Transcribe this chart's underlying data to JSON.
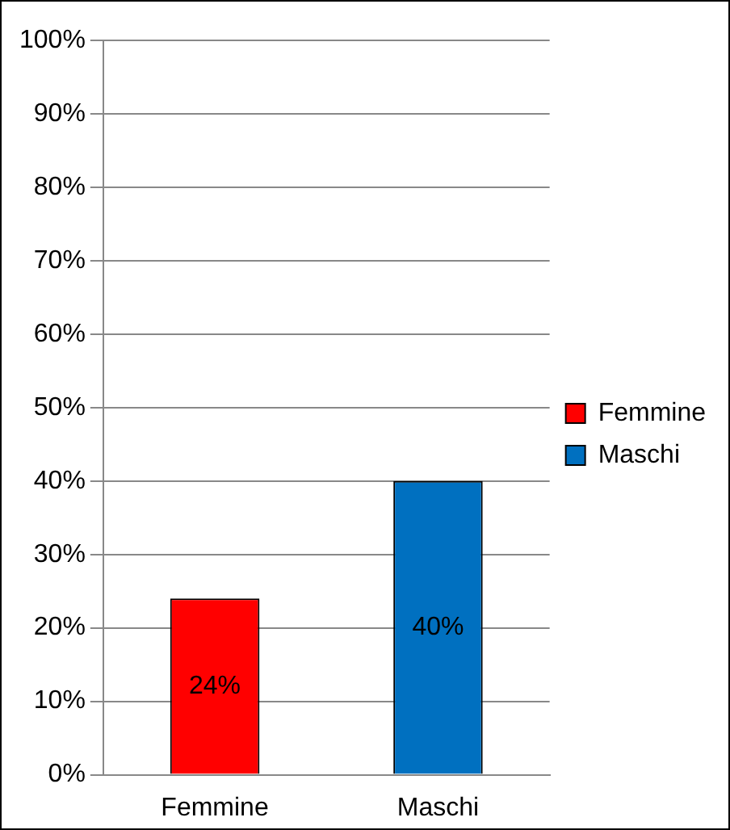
{
  "chart_data": {
    "type": "bar",
    "categories": [
      "Femmine",
      "Maschi"
    ],
    "series": [
      {
        "name": "Femmine",
        "color": "#ff0000",
        "values": [
          24,
          null
        ],
        "value_labels": [
          "24%",
          null
        ]
      },
      {
        "name": "Maschi",
        "color": "#0070c0",
        "values": [
          null,
          40
        ],
        "value_labels": [
          null,
          "40%"
        ]
      }
    ],
    "ylim": [
      0,
      100
    ],
    "yticks": [
      {
        "value": 0,
        "label": "0%"
      },
      {
        "value": 10,
        "label": "10%"
      },
      {
        "value": 20,
        "label": "20%"
      },
      {
        "value": 30,
        "label": "30%"
      },
      {
        "value": 40,
        "label": "40%"
      },
      {
        "value": 50,
        "label": "50%"
      },
      {
        "value": 60,
        "label": "60%"
      },
      {
        "value": 70,
        "label": "70%"
      },
      {
        "value": 80,
        "label": "80%"
      },
      {
        "value": 90,
        "label": "90%"
      },
      {
        "value": 100,
        "label": "100%"
      }
    ],
    "grid": "y",
    "legend": "right"
  }
}
